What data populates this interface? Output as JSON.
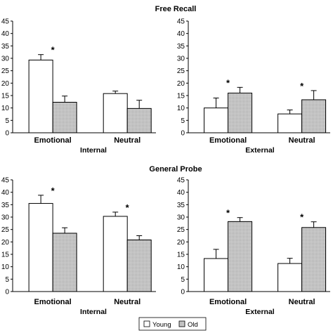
{
  "sections": [
    {
      "title": "Free Recall"
    },
    {
      "title": "General Probe"
    }
  ],
  "legend": {
    "young": "Young",
    "old": "Old"
  },
  "colors": {
    "young_fill": "#ffffff",
    "old_fill": "#c9c9c9",
    "stroke": "#000000"
  },
  "chart_data": [
    {
      "type": "bar",
      "section": "Free Recall",
      "xlabel": "Internal",
      "categories": [
        "Emotional",
        "Neutral"
      ],
      "ylim": [
        0,
        45
      ],
      "yticks": [
        0,
        5,
        10,
        15,
        20,
        25,
        30,
        35,
        40,
        45
      ],
      "series": [
        {
          "name": "Young",
          "values": [
            29.3,
            15.8
          ],
          "errors": [
            2.2,
            1.0
          ]
        },
        {
          "name": "Old",
          "values": [
            12.3,
            9.8
          ],
          "errors": [
            2.5,
            3.3
          ]
        }
      ],
      "significant": [
        true,
        false
      ],
      "annotation": "*"
    },
    {
      "type": "bar",
      "section": "Free Recall",
      "xlabel": "External",
      "categories": [
        "Emotional",
        "Neutral"
      ],
      "ylim": [
        0,
        45
      ],
      "yticks": [
        0,
        5,
        10,
        15,
        20,
        25,
        30,
        35,
        40,
        45
      ],
      "series": [
        {
          "name": "Young",
          "values": [
            10.0,
            7.6
          ],
          "errors": [
            4.0,
            1.6
          ]
        },
        {
          "name": "Old",
          "values": [
            16.0,
            13.3
          ],
          "errors": [
            2.3,
            3.7
          ]
        }
      ],
      "significant": [
        true,
        true
      ],
      "annotation": "*"
    },
    {
      "type": "bar",
      "section": "General Probe",
      "xlabel": "Internal",
      "categories": [
        "Emotional",
        "Neutral"
      ],
      "ylim": [
        0,
        45
      ],
      "yticks": [
        0,
        5,
        10,
        15,
        20,
        25,
        30,
        35,
        40,
        45
      ],
      "series": [
        {
          "name": "Young",
          "values": [
            35.5,
            30.3
          ],
          "errors": [
            3.3,
            1.7
          ]
        },
        {
          "name": "Old",
          "values": [
            23.5,
            20.8
          ],
          "errors": [
            2.2,
            1.7
          ]
        }
      ],
      "significant": [
        true,
        true
      ],
      "annotation": "*"
    },
    {
      "type": "bar",
      "section": "General Probe",
      "xlabel": "External",
      "categories": [
        "Emotional",
        "Neutral"
      ],
      "ylim": [
        0,
        45
      ],
      "yticks": [
        0,
        5,
        10,
        15,
        20,
        25,
        30,
        35,
        40,
        45
      ],
      "series": [
        {
          "name": "Young",
          "values": [
            13.3,
            11.3
          ],
          "errors": [
            3.7,
            2.1
          ]
        },
        {
          "name": "Old",
          "values": [
            28.2,
            25.8
          ],
          "errors": [
            1.6,
            2.3
          ]
        }
      ],
      "significant": [
        true,
        true
      ],
      "annotation": "*"
    }
  ]
}
